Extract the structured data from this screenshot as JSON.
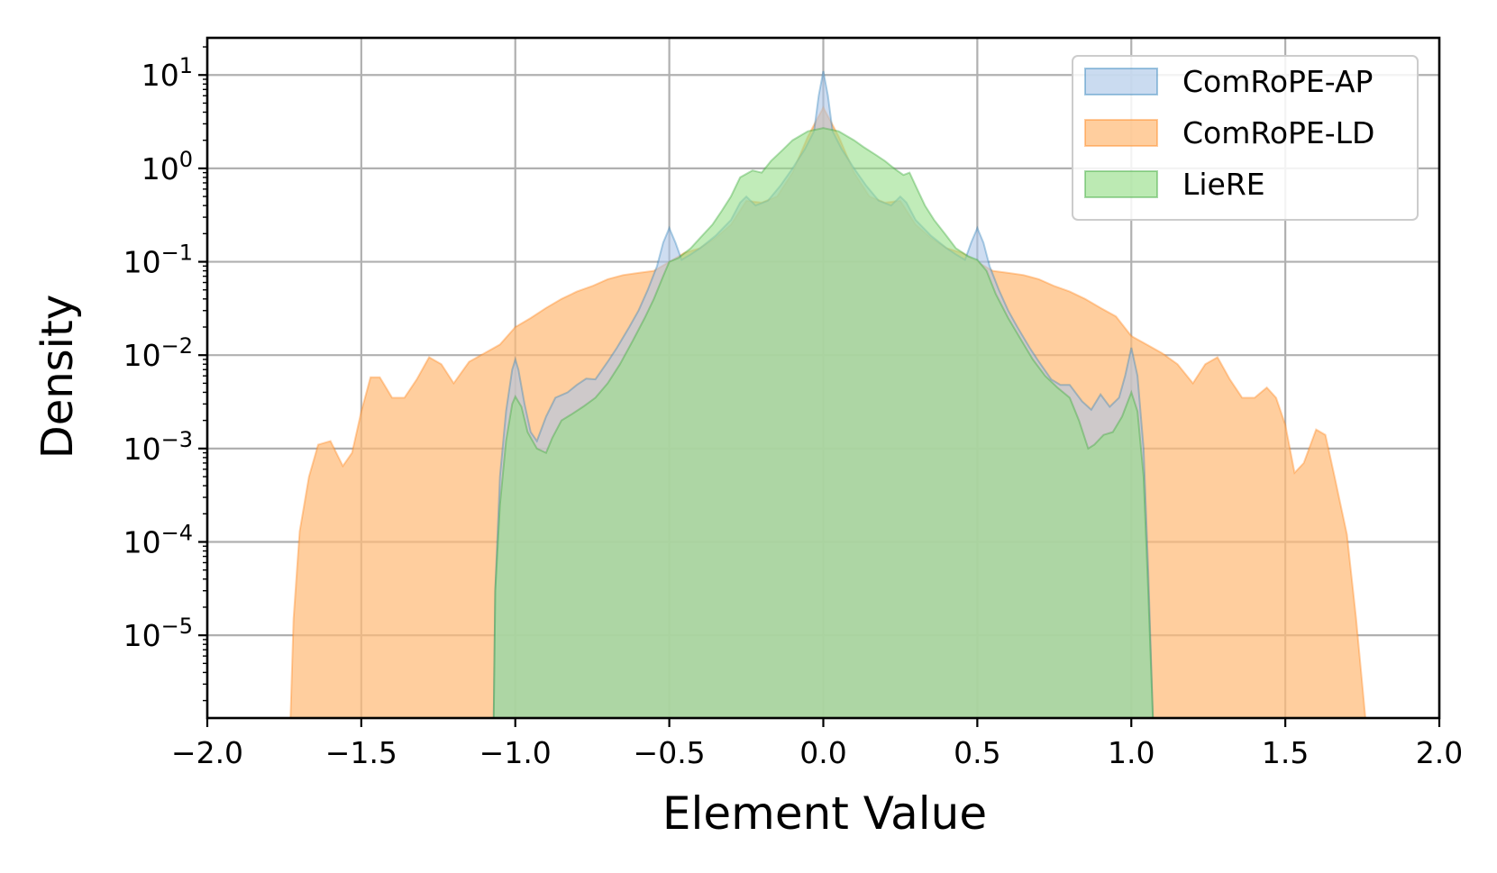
{
  "chart_data": {
    "type": "area",
    "xlabel": "Element Value",
    "ylabel": "Density",
    "xlim": [
      -2.0,
      2.0
    ],
    "ylim": [
      1.3e-06,
      25
    ],
    "yscale": "log",
    "grid": true,
    "legend_position": "top-right",
    "x_ticks": [
      -2.0,
      -1.5,
      -1.0,
      -0.5,
      0.0,
      0.5,
      1.0,
      1.5,
      2.0
    ],
    "x_tick_labels": [
      "−2.0",
      "−1.5",
      "−1.0",
      "−0.5",
      "0.0",
      "0.5",
      "1.0",
      "1.5",
      "2.0"
    ],
    "y_ticks": [
      {
        "value": 10,
        "base": "10",
        "exp": "1"
      },
      {
        "value": 1,
        "base": "10",
        "exp": "0"
      },
      {
        "value": 0.1,
        "base": "10",
        "exp": "−1"
      },
      {
        "value": 0.01,
        "base": "10",
        "exp": "−2"
      },
      {
        "value": 0.001,
        "base": "10",
        "exp": "−3"
      },
      {
        "value": 0.0001,
        "base": "10",
        "exp": "−4"
      },
      {
        "value": 1e-05,
        "base": "10",
        "exp": "−5"
      }
    ],
    "series": [
      {
        "name": "ComRoPE-LD",
        "fill": "#ffbb78",
        "stroke": "#ff7f0e",
        "points": [
          [
            -1.73,
            1.3e-06
          ],
          [
            -1.72,
            1.5e-05
          ],
          [
            -1.7,
            0.00013
          ],
          [
            -1.67,
            0.0005
          ],
          [
            -1.64,
            0.0011
          ],
          [
            -1.6,
            0.0012
          ],
          [
            -1.56,
            0.00065
          ],
          [
            -1.53,
            0.0009
          ],
          [
            -1.5,
            0.0025
          ],
          [
            -1.47,
            0.0058
          ],
          [
            -1.44,
            0.0058
          ],
          [
            -1.4,
            0.0035
          ],
          [
            -1.36,
            0.0035
          ],
          [
            -1.32,
            0.0055
          ],
          [
            -1.28,
            0.0095
          ],
          [
            -1.24,
            0.008
          ],
          [
            -1.2,
            0.005
          ],
          [
            -1.15,
            0.0085
          ],
          [
            -1.1,
            0.0105
          ],
          [
            -1.05,
            0.013
          ],
          [
            -1.0,
            0.02
          ],
          [
            -0.95,
            0.025
          ],
          [
            -0.9,
            0.032
          ],
          [
            -0.85,
            0.04
          ],
          [
            -0.8,
            0.048
          ],
          [
            -0.75,
            0.055
          ],
          [
            -0.7,
            0.065
          ],
          [
            -0.65,
            0.072
          ],
          [
            -0.6,
            0.076
          ],
          [
            -0.55,
            0.08
          ],
          [
            -0.5,
            0.1
          ],
          [
            -0.45,
            0.125
          ],
          [
            -0.4,
            0.14
          ],
          [
            -0.35,
            0.18
          ],
          [
            -0.3,
            0.25
          ],
          [
            -0.25,
            0.45
          ],
          [
            -0.2,
            0.43
          ],
          [
            -0.15,
            0.5
          ],
          [
            -0.1,
            0.9
          ],
          [
            -0.05,
            2.2
          ],
          [
            0.0,
            4.5
          ],
          [
            0.05,
            2.2
          ],
          [
            0.1,
            0.9
          ],
          [
            0.15,
            0.5
          ],
          [
            0.2,
            0.43
          ],
          [
            0.25,
            0.45
          ],
          [
            0.3,
            0.25
          ],
          [
            0.35,
            0.18
          ],
          [
            0.4,
            0.14
          ],
          [
            0.45,
            0.125
          ],
          [
            0.5,
            0.1
          ],
          [
            0.55,
            0.08
          ],
          [
            0.6,
            0.076
          ],
          [
            0.65,
            0.072
          ],
          [
            0.7,
            0.065
          ],
          [
            0.75,
            0.055
          ],
          [
            0.8,
            0.048
          ],
          [
            0.85,
            0.04
          ],
          [
            0.9,
            0.032
          ],
          [
            0.95,
            0.026
          ],
          [
            1.0,
            0.016
          ],
          [
            1.05,
            0.013
          ],
          [
            1.1,
            0.0105
          ],
          [
            1.15,
            0.008
          ],
          [
            1.2,
            0.005
          ],
          [
            1.24,
            0.008
          ],
          [
            1.28,
            0.0095
          ],
          [
            1.32,
            0.0055
          ],
          [
            1.36,
            0.0035
          ],
          [
            1.4,
            0.0035
          ],
          [
            1.44,
            0.0045
          ],
          [
            1.47,
            0.0035
          ],
          [
            1.5,
            0.0018
          ],
          [
            1.53,
            0.00055
          ],
          [
            1.56,
            0.0007
          ],
          [
            1.6,
            0.0016
          ],
          [
            1.63,
            0.0014
          ],
          [
            1.66,
            0.0005
          ],
          [
            1.7,
            0.00012
          ],
          [
            1.73,
            1.5e-05
          ],
          [
            1.76,
            1.3e-06
          ]
        ]
      },
      {
        "name": "ComRoPE-AP",
        "fill": "#aec7e8",
        "stroke": "#1f77b4",
        "points": [
          [
            -1.07,
            1.3e-06
          ],
          [
            -1.065,
            3e-05
          ],
          [
            -1.05,
            0.0005
          ],
          [
            -1.03,
            0.0025
          ],
          [
            -1.01,
            0.007
          ],
          [
            -1.0,
            0.009
          ],
          [
            -0.99,
            0.007
          ],
          [
            -0.97,
            0.003
          ],
          [
            -0.95,
            0.0015
          ],
          [
            -0.93,
            0.0012
          ],
          [
            -0.9,
            0.0022
          ],
          [
            -0.87,
            0.0035
          ],
          [
            -0.83,
            0.004
          ],
          [
            -0.8,
            0.0048
          ],
          [
            -0.77,
            0.0056
          ],
          [
            -0.74,
            0.0055
          ],
          [
            -0.7,
            0.0085
          ],
          [
            -0.67,
            0.012
          ],
          [
            -0.63,
            0.02
          ],
          [
            -0.6,
            0.03
          ],
          [
            -0.57,
            0.05
          ],
          [
            -0.54,
            0.09
          ],
          [
            -0.52,
            0.16
          ],
          [
            -0.5,
            0.23
          ],
          [
            -0.48,
            0.16
          ],
          [
            -0.46,
            0.105
          ],
          [
            -0.43,
            0.12
          ],
          [
            -0.4,
            0.14
          ],
          [
            -0.35,
            0.19
          ],
          [
            -0.3,
            0.28
          ],
          [
            -0.27,
            0.43
          ],
          [
            -0.25,
            0.5
          ],
          [
            -0.22,
            0.4
          ],
          [
            -0.18,
            0.45
          ],
          [
            -0.14,
            0.65
          ],
          [
            -0.1,
            1.0
          ],
          [
            -0.06,
            1.6
          ],
          [
            -0.03,
            2.5
          ],
          [
            -0.015,
            6
          ],
          [
            0.0,
            11
          ],
          [
            0.015,
            6
          ],
          [
            0.03,
            2.5
          ],
          [
            0.06,
            1.6
          ],
          [
            0.1,
            1.0
          ],
          [
            0.14,
            0.65
          ],
          [
            0.18,
            0.45
          ],
          [
            0.22,
            0.4
          ],
          [
            0.25,
            0.5
          ],
          [
            0.27,
            0.43
          ],
          [
            0.3,
            0.28
          ],
          [
            0.35,
            0.19
          ],
          [
            0.4,
            0.14
          ],
          [
            0.43,
            0.12
          ],
          [
            0.46,
            0.105
          ],
          [
            0.48,
            0.16
          ],
          [
            0.5,
            0.23
          ],
          [
            0.52,
            0.16
          ],
          [
            0.54,
            0.09
          ],
          [
            0.57,
            0.05
          ],
          [
            0.6,
            0.03
          ],
          [
            0.63,
            0.02
          ],
          [
            0.67,
            0.012
          ],
          [
            0.7,
            0.0085
          ],
          [
            0.74,
            0.0055
          ],
          [
            0.77,
            0.0048
          ],
          [
            0.8,
            0.0048
          ],
          [
            0.84,
            0.0032
          ],
          [
            0.87,
            0.0026
          ],
          [
            0.9,
            0.0038
          ],
          [
            0.93,
            0.0028
          ],
          [
            0.96,
            0.0035
          ],
          [
            0.98,
            0.006
          ],
          [
            1.0,
            0.012
          ],
          [
            1.02,
            0.006
          ],
          [
            1.04,
            0.001
          ],
          [
            1.055,
            5e-05
          ],
          [
            1.07,
            1.3e-06
          ]
        ]
      },
      {
        "name": "LieRE",
        "fill": "#98df8a",
        "stroke": "#2ca02c",
        "points": [
          [
            -1.07,
            1.3e-06
          ],
          [
            -1.065,
            3e-05
          ],
          [
            -1.05,
            0.00025
          ],
          [
            -1.03,
            0.0012
          ],
          [
            -1.01,
            0.003
          ],
          [
            -1.0,
            0.0036
          ],
          [
            -0.98,
            0.0028
          ],
          [
            -0.96,
            0.0015
          ],
          [
            -0.93,
            0.001
          ],
          [
            -0.9,
            0.0009
          ],
          [
            -0.88,
            0.0013
          ],
          [
            -0.85,
            0.002
          ],
          [
            -0.82,
            0.0023
          ],
          [
            -0.78,
            0.0028
          ],
          [
            -0.74,
            0.0035
          ],
          [
            -0.7,
            0.005
          ],
          [
            -0.66,
            0.008
          ],
          [
            -0.62,
            0.014
          ],
          [
            -0.58,
            0.025
          ],
          [
            -0.55,
            0.04
          ],
          [
            -0.52,
            0.07
          ],
          [
            -0.5,
            0.1
          ],
          [
            -0.47,
            0.11
          ],
          [
            -0.43,
            0.14
          ],
          [
            -0.4,
            0.18
          ],
          [
            -0.36,
            0.25
          ],
          [
            -0.33,
            0.35
          ],
          [
            -0.3,
            0.5
          ],
          [
            -0.27,
            0.8
          ],
          [
            -0.23,
            0.95
          ],
          [
            -0.2,
            0.9
          ],
          [
            -0.17,
            1.2
          ],
          [
            -0.13,
            1.6
          ],
          [
            -0.1,
            2.0
          ],
          [
            -0.05,
            2.5
          ],
          [
            0.0,
            2.7
          ],
          [
            0.05,
            2.5
          ],
          [
            0.1,
            2.0
          ],
          [
            0.13,
            1.7
          ],
          [
            0.17,
            1.4
          ],
          [
            0.2,
            1.2
          ],
          [
            0.23,
            1.0
          ],
          [
            0.26,
            0.85
          ],
          [
            0.28,
            0.9
          ],
          [
            0.3,
            0.65
          ],
          [
            0.33,
            0.4
          ],
          [
            0.36,
            0.28
          ],
          [
            0.4,
            0.19
          ],
          [
            0.43,
            0.14
          ],
          [
            0.47,
            0.115
          ],
          [
            0.5,
            0.105
          ],
          [
            0.53,
            0.08
          ],
          [
            0.56,
            0.045
          ],
          [
            0.6,
            0.025
          ],
          [
            0.64,
            0.015
          ],
          [
            0.68,
            0.009
          ],
          [
            0.72,
            0.006
          ],
          [
            0.76,
            0.0045
          ],
          [
            0.8,
            0.0035
          ],
          [
            0.83,
            0.002
          ],
          [
            0.86,
            0.001
          ],
          [
            0.88,
            0.0011
          ],
          [
            0.91,
            0.0014
          ],
          [
            0.94,
            0.0015
          ],
          [
            0.97,
            0.0022
          ],
          [
            1.0,
            0.004
          ],
          [
            1.02,
            0.0025
          ],
          [
            1.04,
            0.0005
          ],
          [
            1.055,
            3e-05
          ],
          [
            1.07,
            1.3e-06
          ]
        ]
      }
    ]
  }
}
